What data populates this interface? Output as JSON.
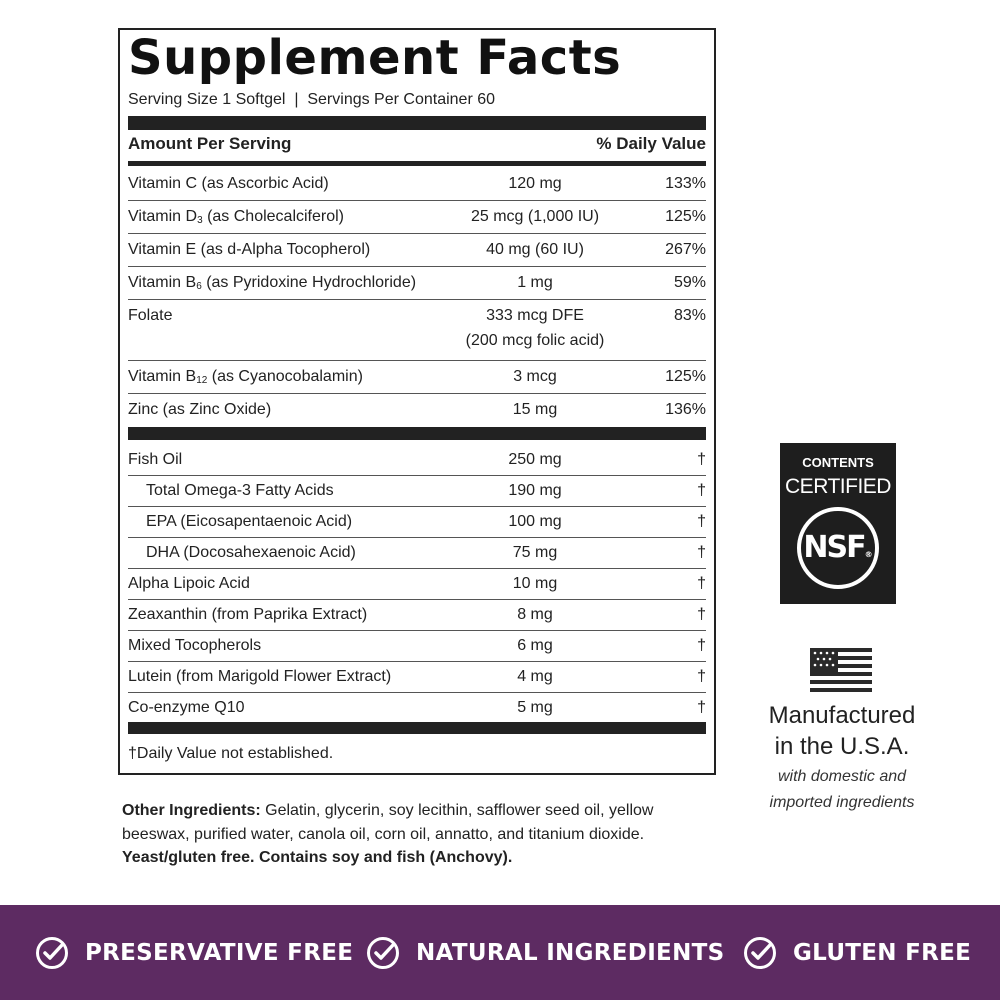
{
  "facts": {
    "title": "Supplement Facts",
    "serving": "Serving Size 1 Softgel  |  Servings Per Container 60",
    "header": {
      "amount": "Amount Per Serving",
      "dv": "% Daily Value"
    },
    "vitamins": [
      {
        "name": "Vitamin C (as Ascorbic Acid)",
        "amount": "120 mg",
        "dv": "133%"
      },
      {
        "name": "Vitamin D",
        "sub": "3",
        "suffix": " (as Cholecalciferol)",
        "amount": "25 mcg (1,000 IU)",
        "dv": "125%"
      },
      {
        "name": "Vitamin E (as d-Alpha Tocopherol)",
        "amount": "40 mg (60 IU)",
        "dv": "267%"
      },
      {
        "name": "Vitamin B",
        "sub": "6",
        "suffix": " (as Pyridoxine Hydrochloride)",
        "amount": "1 mg",
        "dv": "59%"
      },
      {
        "name": "Folate",
        "amount": "333 mcg DFE",
        "amount_note": "(200 mcg folic acid)",
        "dv": "83%"
      },
      {
        "name": "Vitamin B",
        "sub": "12",
        "suffix": " (as Cyanocobalamin)",
        "amount": "3 mcg",
        "dv": "125%"
      },
      {
        "name": "Zinc (as Zinc Oxide)",
        "amount": "15 mg",
        "dv": "136%"
      }
    ],
    "others": [
      {
        "name": "Fish Oil",
        "amount": "250 mg",
        "dv": "†",
        "components": [
          {
            "name": "Total Omega-3 Fatty Acids",
            "amount": "190 mg",
            "dv": "†"
          },
          {
            "name": "EPA (Eicosapentaenoic Acid)",
            "amount": "100 mg",
            "dv": "†"
          },
          {
            "name": "DHA (Docosahexaenoic Acid)",
            "amount": "75 mg",
            "dv": "†"
          }
        ]
      },
      {
        "name": "Alpha Lipoic Acid",
        "amount": "10 mg",
        "dv": "†"
      },
      {
        "name": "Zeaxanthin (from Paprika Extract)",
        "amount": "8 mg",
        "dv": "†"
      },
      {
        "name": "Mixed Tocopherols",
        "amount": "6 mg",
        "dv": "†"
      },
      {
        "name": "Lutein (from Marigold Flower Extract)",
        "amount": "4 mg",
        "dv": "†"
      },
      {
        "name": "Co-enzyme Q10",
        "amount": "5 mg",
        "dv": "†"
      }
    ],
    "footnote": "†Daily Value not established."
  },
  "ingredients": {
    "label": "Other Ingredients:",
    "text": " Gelatin, glycerin, soy lecithin, safflower seed oil, yellow beeswax, purified water, canola oil, corn oil, annatto, and titanium dioxide. ",
    "note": "Yeast/gluten free. Contains soy and fish (Anchovy)."
  },
  "badge": {
    "top": "CONTENTS",
    "middle": "CERTIFIED",
    "logo": "NSF",
    "mark": "®"
  },
  "origin": {
    "lines": [
      "Manufactured",
      "in the U.S.A."
    ],
    "notes": [
      "with domestic and",
      "imported ingredients"
    ]
  },
  "claims": [
    "PRESERVATIVE FREE",
    "NATURAL INGREDIENTS",
    "GLUTEN FREE"
  ]
}
